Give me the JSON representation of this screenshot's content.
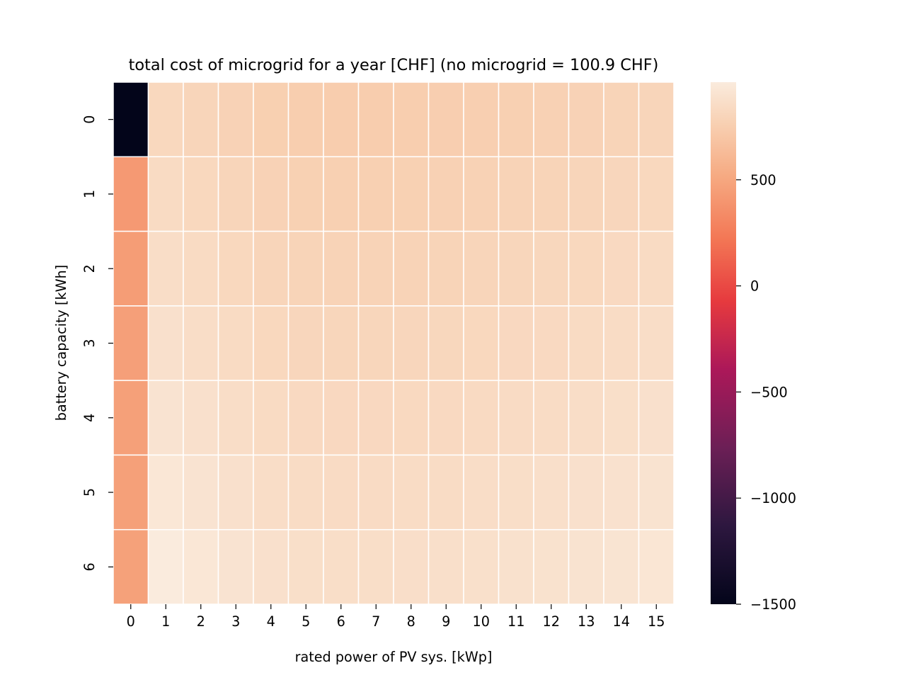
{
  "chart_data": {
    "type": "heatmap",
    "title": "total cost of microgrid for a year [CHF] (no microgrid = 100.9 CHF)",
    "xlabel": "rated power of PV sys. [kWp]",
    "ylabel": "battery capacity [kWh]",
    "x_categories": [
      "0",
      "1",
      "2",
      "3",
      "4",
      "5",
      "6",
      "7",
      "8",
      "9",
      "10",
      "11",
      "12",
      "13",
      "14",
      "15"
    ],
    "y_categories": [
      "0",
      "1",
      "2",
      "3",
      "4",
      "5",
      "6"
    ],
    "values": [
      [
        -1500,
        820,
        800,
        780,
        760,
        750,
        745,
        745,
        748,
        752,
        758,
        765,
        772,
        780,
        790,
        800
      ],
      [
        420,
        840,
        820,
        800,
        780,
        770,
        765,
        765,
        768,
        772,
        778,
        785,
        792,
        800,
        810,
        820
      ],
      [
        440,
        860,
        840,
        820,
        800,
        790,
        785,
        785,
        788,
        792,
        798,
        805,
        812,
        820,
        830,
        840
      ],
      [
        455,
        880,
        860,
        840,
        820,
        810,
        805,
        805,
        808,
        812,
        818,
        825,
        832,
        840,
        850,
        860
      ],
      [
        460,
        905,
        880,
        860,
        840,
        830,
        825,
        825,
        828,
        832,
        838,
        845,
        852,
        860,
        870,
        880
      ],
      [
        460,
        930,
        905,
        880,
        860,
        850,
        845,
        845,
        848,
        852,
        858,
        865,
        872,
        880,
        890,
        900
      ],
      [
        465,
        960,
        930,
        905,
        880,
        870,
        865,
        865,
        868,
        872,
        878,
        885,
        892,
        900,
        910,
        920
      ]
    ],
    "colormap": "rocket",
    "colorbar": {
      "min": -1500,
      "max": 960,
      "ticks": [
        500,
        0,
        -500,
        -1000,
        -1500
      ],
      "tick_labels": [
        "500",
        "0",
        "−500",
        "−1000",
        "−1500"
      ]
    },
    "grid_lines": "white",
    "legend": "colorbar-right"
  }
}
